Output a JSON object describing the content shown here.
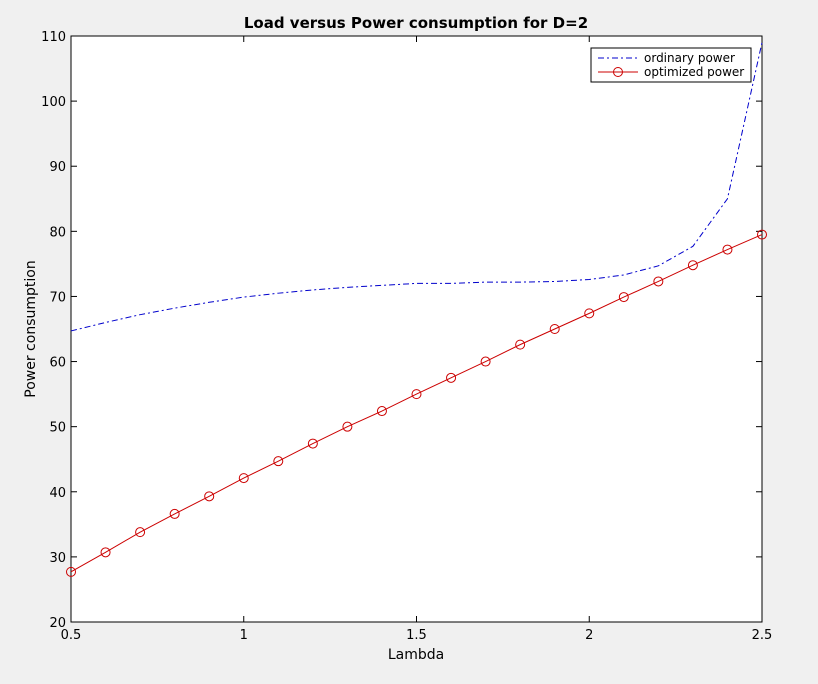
{
  "chart_data": {
    "type": "line",
    "title": "Load versus Power consumption for D=2",
    "xlabel": "Lambda",
    "ylabel": "Power consumption",
    "xlim": [
      0.5,
      2.5
    ],
    "ylim": [
      20,
      110
    ],
    "xticks": [
      0.5,
      1,
      1.5,
      2,
      2.5
    ],
    "xtick_labels": [
      "0.5",
      "1",
      "1.5",
      "2",
      "2.5"
    ],
    "yticks": [
      20,
      30,
      40,
      50,
      60,
      70,
      80,
      90,
      100,
      110
    ],
    "ytick_labels": [
      "20",
      "30",
      "40",
      "50",
      "60",
      "70",
      "80",
      "90",
      "100",
      "110"
    ],
    "grid": false,
    "legend_position": "top-right",
    "x": [
      0.5,
      0.6,
      0.7,
      0.8,
      0.9,
      1.0,
      1.1,
      1.2,
      1.3,
      1.4,
      1.5,
      1.6,
      1.7,
      1.8,
      1.9,
      2.0,
      2.1,
      2.2,
      2.3,
      2.4,
      2.5
    ],
    "series": [
      {
        "name": "ordinary power",
        "style": "dash-dot",
        "color": "#0000cc",
        "marker": "none",
        "values": [
          64.7,
          66.0,
          67.2,
          68.2,
          69.1,
          69.9,
          70.5,
          71.0,
          71.4,
          71.7,
          72.0,
          72.0,
          72.2,
          72.2,
          72.3,
          72.6,
          73.3,
          74.7,
          77.7,
          85.0,
          109.0
        ]
      },
      {
        "name": "optimized power",
        "style": "solid",
        "color": "#cc0000",
        "marker": "circle",
        "values": [
          27.7,
          30.7,
          33.8,
          36.6,
          39.3,
          42.1,
          44.7,
          47.4,
          50.0,
          52.4,
          55.0,
          57.5,
          60.0,
          62.6,
          65.0,
          67.4,
          69.9,
          72.3,
          74.8,
          77.2,
          79.5
        ]
      }
    ]
  }
}
